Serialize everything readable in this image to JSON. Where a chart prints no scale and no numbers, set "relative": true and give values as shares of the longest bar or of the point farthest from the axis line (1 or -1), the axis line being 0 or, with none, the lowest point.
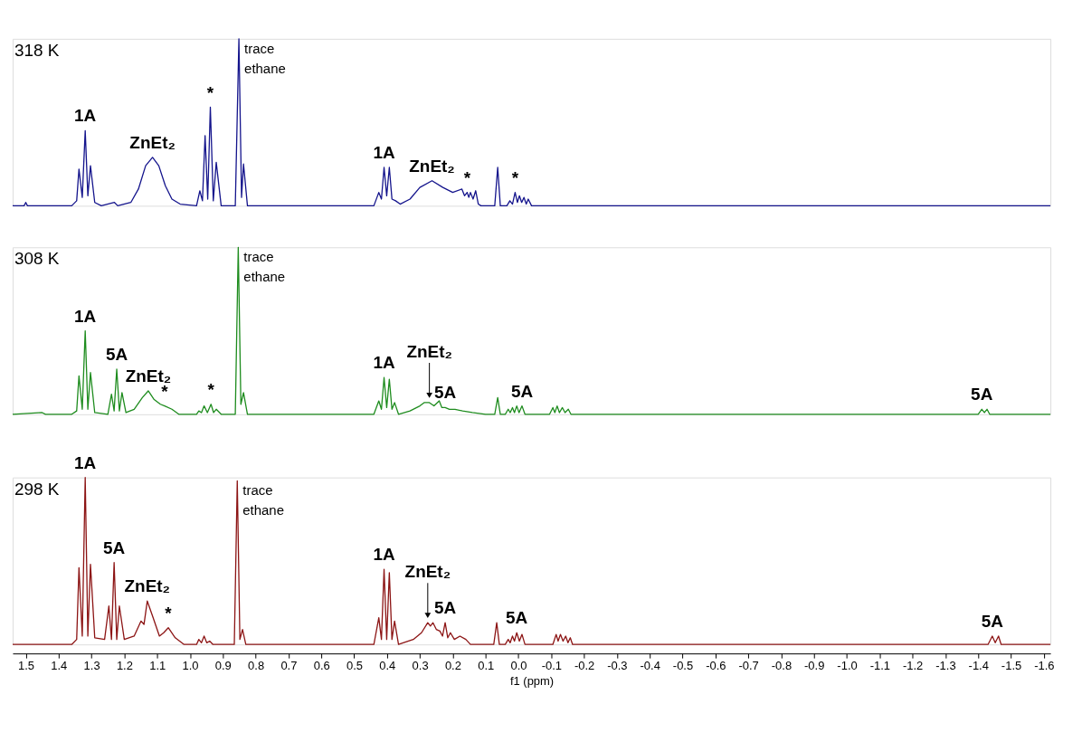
{
  "chart_data": [
    {
      "type": "line",
      "relative": true,
      "xlim": [
        1.54,
        -1.62
      ],
      "tick_labels": false,
      "annotations": [
        "318 K",
        {
          "text": "trace ethane",
          "x": 0.851,
          "y": 1.0
        },
        {
          "text": "1A",
          "x": 1.319,
          "y": 0.45
        },
        {
          "text": "ZnEt₂",
          "x": 1.114,
          "y": 0.29
        },
        {
          "text": "*",
          "x": 0.938,
          "y": 0.59
        },
        {
          "text": "1A",
          "x": 0.409,
          "y": 0.23
        },
        {
          "text": "ZnEt₂",
          "x": 0.263,
          "y": 0.15
        },
        {
          "text": "*",
          "x": 0.156,
          "y": 0.08
        },
        {
          "text": "*",
          "x": 0.01,
          "y": 0.08
        }
      ],
      "series": [
        {
          "color": "#14148c",
          "x": [
            1.54,
            1.505,
            1.5,
            1.495,
            1.36,
            1.345,
            1.338,
            1.328,
            1.319,
            1.311,
            1.303,
            1.29,
            1.27,
            1.23,
            1.22,
            1.18,
            1.157,
            1.135,
            1.114,
            1.095,
            1.075,
            1.055,
            1.03,
            0.98,
            0.97,
            0.962,
            0.954,
            0.946,
            0.938,
            0.929,
            0.92,
            0.905,
            0.862,
            0.851,
            0.843,
            0.837,
            0.825,
            0.44,
            0.425,
            0.417,
            0.409,
            0.401,
            0.393,
            0.385,
            0.374,
            0.36,
            0.33,
            0.3,
            0.263,
            0.23,
            0.2,
            0.172,
            0.164,
            0.156,
            0.151,
            0.146,
            0.138,
            0.13,
            0.122,
            0.114,
            0.072,
            0.063,
            0.055,
            0.035,
            0.026,
            0.018,
            0.01,
            0.003,
            -0.003,
            -0.01,
            -0.017,
            -0.024,
            -0.03,
            -0.04,
            -1.62
          ],
          "values": [
            0,
            0,
            0.02,
            0,
            0,
            0.03,
            0.22,
            0.05,
            0.45,
            0.06,
            0.24,
            0.02,
            0,
            0.02,
            0,
            0.02,
            0.1,
            0.24,
            0.29,
            0.24,
            0.12,
            0.04,
            0.01,
            0,
            0.09,
            0.03,
            0.42,
            0.04,
            0.59,
            0.03,
            0.26,
            0,
            0,
            1.0,
            0.05,
            0.25,
            0,
            0,
            0.08,
            0.04,
            0.23,
            0.06,
            0.23,
            0.04,
            0.03,
            0.01,
            0.04,
            0.11,
            0.15,
            0.11,
            0.08,
            0.1,
            0.06,
            0.08,
            0.05,
            0.08,
            0.04,
            0.09,
            0.01,
            0,
            0,
            0.23,
            0,
            0,
            0.03,
            0.01,
            0.08,
            0.02,
            0.06,
            0.02,
            0.05,
            0.01,
            0.04,
            0,
            0
          ]
        }
      ]
    },
    {
      "type": "line",
      "relative": true,
      "xlim": [
        1.54,
        -1.62
      ],
      "tick_labels": false,
      "annotations": [
        "308 K",
        {
          "text": "trace ethane",
          "x": 0.853,
          "y": 1.0
        },
        {
          "text": "1A",
          "x": 1.319,
          "y": 0.5
        },
        {
          "text": "5A",
          "x": 1.223,
          "y": 0.27
        },
        {
          "text": "ZnEt₂",
          "x": 1.127,
          "y": 0.14
        },
        {
          "text": "*",
          "x": 1.077,
          "y": 0.05
        },
        {
          "text": "*",
          "x": 0.936,
          "y": 0.06
        },
        {
          "text": "1A",
          "x": 0.409,
          "y": 0.22
        },
        {
          "text": "ZnEt₂",
          "x": 0.271,
          "y": 0.07
        },
        {
          "text": "5A",
          "x": 0.223,
          "y": 0.04
        },
        {
          "text": "5A",
          "x": -0.011,
          "y": 0.05
        },
        {
          "text": "5A",
          "x": -1.411,
          "y": 0.03
        }
      ],
      "series": [
        {
          "color": "#1e8c1e",
          "x": [
            1.54,
            1.45,
            1.44,
            1.36,
            1.345,
            1.338,
            1.328,
            1.319,
            1.311,
            1.303,
            1.29,
            1.25,
            1.239,
            1.231,
            1.223,
            1.215,
            1.207,
            1.195,
            1.17,
            1.145,
            1.127,
            1.11,
            1.09,
            1.077,
            1.055,
            1.034,
            0.98,
            0.973,
            0.965,
            0.957,
            0.947,
            0.936,
            0.928,
            0.92,
            0.905,
            0.862,
            0.853,
            0.845,
            0.837,
            0.825,
            0.44,
            0.425,
            0.417,
            0.409,
            0.401,
            0.393,
            0.385,
            0.377,
            0.365,
            0.33,
            0.3,
            0.287,
            0.271,
            0.257,
            0.241,
            0.233,
            0.223,
            0.21,
            0.193,
            0.17,
            0.14,
            0.1,
            0.072,
            0.063,
            0.055,
            0.04,
            0.031,
            0.025,
            0.018,
            0.012,
            0.005,
            -0.002,
            -0.011,
            -0.02,
            -0.095,
            -0.105,
            -0.111,
            -0.118,
            -0.125,
            -0.134,
            -0.142,
            -0.152,
            -0.16,
            -1.4,
            -1.411,
            -1.419,
            -1.427,
            -1.435,
            -1.62
          ],
          "values": [
            0,
            0.01,
            0,
            0,
            0.02,
            0.23,
            0.03,
            0.5,
            0.03,
            0.25,
            0.01,
            0,
            0.12,
            0.02,
            0.27,
            0.02,
            0.13,
            0.01,
            0.03,
            0.1,
            0.14,
            0.09,
            0.06,
            0.05,
            0.03,
            0,
            0,
            0.02,
            0.01,
            0.05,
            0.01,
            0.06,
            0.01,
            0.03,
            0,
            0,
            1.0,
            0.06,
            0.13,
            0,
            0,
            0.08,
            0.03,
            0.22,
            0.04,
            0.21,
            0.03,
            0.07,
            0,
            0.02,
            0.05,
            0.07,
            0.07,
            0.05,
            0.08,
            0.04,
            0.04,
            0.03,
            0.03,
            0.02,
            0.01,
            0,
            0,
            0.1,
            0,
            0,
            0.03,
            0.01,
            0.04,
            0.01,
            0.05,
            0.01,
            0.05,
            0,
            0,
            0.04,
            0.01,
            0.05,
            0.01,
            0.04,
            0.01,
            0.03,
            0,
            0,
            0.03,
            0.01,
            0.03,
            0,
            0
          ]
        }
      ]
    },
    {
      "type": "line",
      "relative": true,
      "xlim": [
        1.54,
        -1.62
      ],
      "tick_labels": "x",
      "xlabel": "f1 (ppm)",
      "xticks": [
        1.5,
        1.4,
        1.3,
        1.2,
        1.1,
        {
          "value": 1,
          "label": "1.0"
        },
        0.9,
        0.8,
        0.7,
        0.6,
        0.5,
        0.4,
        0.3,
        0.2,
        0.1,
        {
          "value": 0,
          "label": "0.0"
        },
        -0.1,
        -0.2,
        -0.3,
        -0.4,
        -0.5,
        -0.6,
        -0.7,
        -0.8,
        -0.9,
        {
          "value": -1,
          "label": "-1.0"
        },
        -1.1,
        -1.2,
        -1.3,
        -1.4,
        -1.5,
        -1.6
      ],
      "annotations": [
        "298 K",
        {
          "text": "trace ethane",
          "x": 0.856,
          "y": 0.98
        },
        {
          "text": "1A",
          "x": 1.319,
          "y": 1.0
        },
        {
          "text": "5A",
          "x": 1.231,
          "y": 0.49
        },
        {
          "text": "ZnEt₂",
          "x": 1.13,
          "y": 0.26
        },
        {
          "text": "*",
          "x": 1.066,
          "y": 0.1
        },
        {
          "text": "1A",
          "x": 0.409,
          "y": 0.45
        },
        {
          "text": "ZnEt₂",
          "x": 0.276,
          "y": 0.13
        },
        {
          "text": "5A",
          "x": 0.223,
          "y": 0.13
        },
        {
          "text": "5A",
          "x": 0.005,
          "y": 0.07
        },
        {
          "text": "5A",
          "x": -1.443,
          "y": 0.05
        }
      ],
      "series": [
        {
          "color": "#8c1414",
          "x": [
            1.54,
            1.36,
            1.345,
            1.338,
            1.328,
            1.319,
            1.311,
            1.303,
            1.29,
            1.26,
            1.247,
            1.239,
            1.231,
            1.223,
            1.215,
            1.2,
            1.17,
            1.149,
            1.14,
            1.13,
            1.114,
            1.093,
            1.08,
            1.066,
            1.045,
            1.018,
            0.98,
            0.973,
            0.965,
            0.957,
            0.949,
            0.94,
            0.93,
            0.865,
            0.856,
            0.848,
            0.84,
            0.83,
            0.44,
            0.425,
            0.417,
            0.409,
            0.401,
            0.393,
            0.385,
            0.377,
            0.365,
            0.32,
            0.295,
            0.276,
            0.268,
            0.26,
            0.25,
            0.239,
            0.231,
            0.223,
            0.215,
            0.207,
            0.195,
            0.178,
            0.16,
            0.146,
            0.075,
            0.066,
            0.058,
            0.04,
            0.031,
            0.025,
            0.018,
            0.012,
            0.005,
            -0.003,
            -0.011,
            -0.02,
            -0.105,
            -0.115,
            -0.121,
            -0.128,
            -0.136,
            -0.144,
            -0.151,
            -0.158,
            -0.165,
            -1.43,
            -1.443,
            -1.452,
            -1.462,
            -1.47,
            -1.62
          ],
          "values": [
            0,
            0,
            0.03,
            0.46,
            0.05,
            1.0,
            0.05,
            0.48,
            0.04,
            0.03,
            0.23,
            0.03,
            0.49,
            0.03,
            0.23,
            0.03,
            0.05,
            0.14,
            0.12,
            0.26,
            0.17,
            0.05,
            0.07,
            0.1,
            0.04,
            0,
            0,
            0.03,
            0.01,
            0.05,
            0.01,
            0.02,
            0,
            0,
            0.98,
            0.03,
            0.09,
            0,
            0,
            0.16,
            0.03,
            0.45,
            0.03,
            0.43,
            0.03,
            0.14,
            0,
            0.03,
            0.07,
            0.13,
            0.11,
            0.13,
            0.09,
            0.08,
            0.05,
            0.13,
            0.04,
            0.07,
            0.03,
            0.05,
            0.03,
            0,
            0,
            0.13,
            0,
            0,
            0.03,
            0.01,
            0.05,
            0.02,
            0.07,
            0.02,
            0.06,
            0,
            0,
            0.06,
            0.02,
            0.06,
            0.02,
            0.05,
            0.01,
            0.04,
            0,
            0,
            0.05,
            0.01,
            0.05,
            0,
            0
          ]
        }
      ]
    }
  ]
}
